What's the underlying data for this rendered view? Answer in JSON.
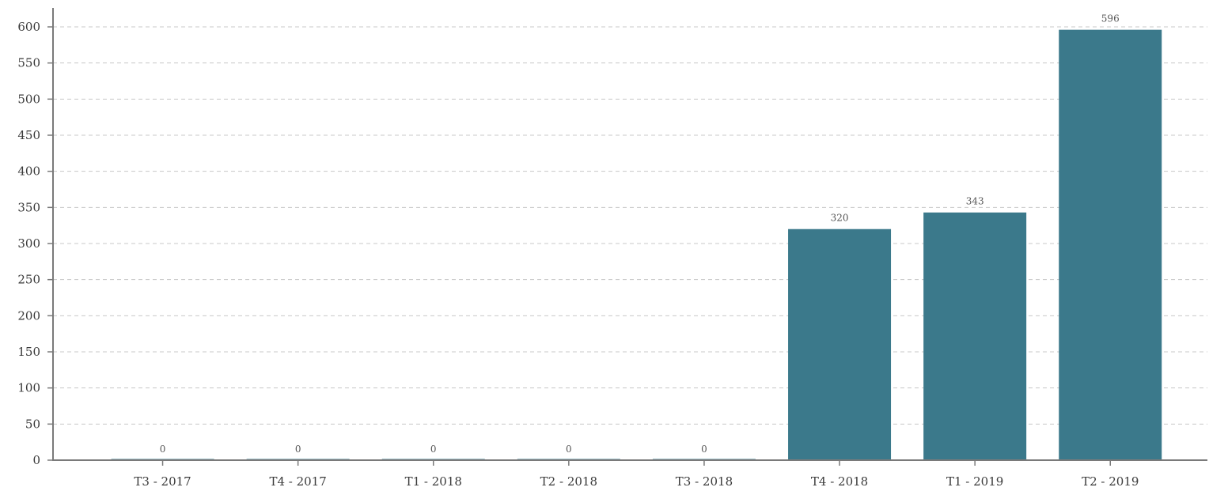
{
  "chart_data": {
    "type": "bar",
    "categories": [
      "T3 - 2017",
      "T4 - 2017",
      "T1 - 2018",
      "T2 - 2018",
      "T3 - 2018",
      "T4 - 2018",
      "T1 - 2019",
      "T2 - 2019"
    ],
    "values": [
      0,
      0,
      0,
      0,
      0,
      320,
      343,
      596
    ],
    "data_labels": [
      "0",
      "0",
      "0",
      "0",
      "0",
      "320",
      "343",
      "596"
    ],
    "y_ticks": [
      0,
      50,
      100,
      150,
      200,
      250,
      300,
      350,
      400,
      450,
      500,
      550,
      600
    ],
    "ylim": [
      0,
      620
    ],
    "grid": true,
    "legend": "none",
    "colors": {
      "bar": "#3b798b",
      "grid": "#c8c8c8",
      "axis": "#7a7a7a"
    }
  }
}
